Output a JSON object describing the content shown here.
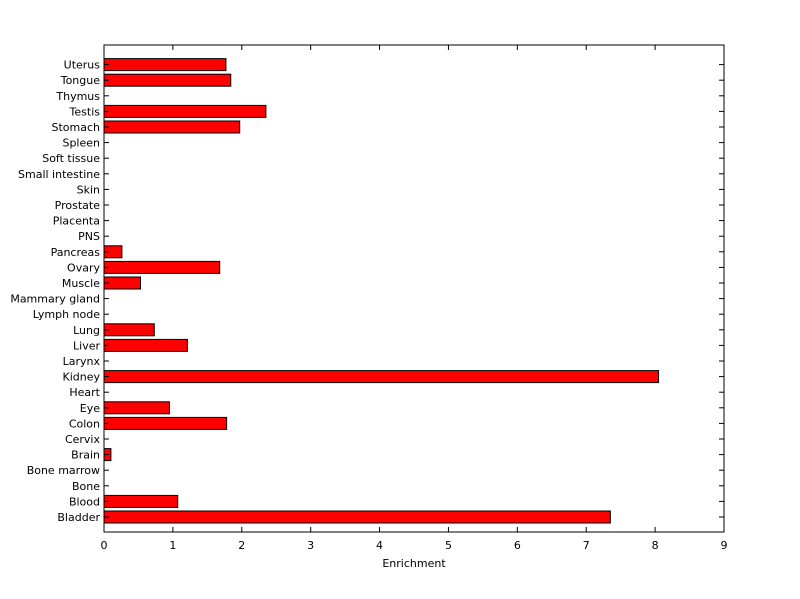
{
  "chart_data": {
    "type": "bar",
    "orientation": "horizontal",
    "categories": [
      "Bladder",
      "Blood",
      "Bone",
      "Bone marrow",
      "Brain",
      "Cervix",
      "Colon",
      "Eye",
      "Heart",
      "Kidney",
      "Larynx",
      "Liver",
      "Lung",
      "Lymph node",
      "Mammary gland",
      "Muscle",
      "Ovary",
      "Pancreas",
      "PNS",
      "Placenta",
      "Prostate",
      "Skin",
      "Small intestine",
      "Soft tissue",
      "Spleen",
      "Stomach",
      "Testis",
      "Thymus",
      "Tongue",
      "Uterus"
    ],
    "values": [
      7.35,
      1.07,
      0,
      0,
      0.1,
      0,
      1.78,
      0.95,
      0,
      8.05,
      0,
      1.21,
      0.73,
      0,
      0,
      0.53,
      1.68,
      0.26,
      0,
      0,
      0,
      0,
      0,
      0,
      0,
      1.97,
      2.35,
      0,
      1.84,
      1.77
    ],
    "xlabel": "Enrichment",
    "ylabel": "",
    "title": "",
    "xlim": [
      0,
      9
    ],
    "xticks": [
      "0",
      "1",
      "2",
      "3",
      "4",
      "5",
      "6",
      "7",
      "8",
      "9"
    ],
    "grid": false,
    "bar_color": "#ff0000",
    "edge_color": "#000000"
  }
}
